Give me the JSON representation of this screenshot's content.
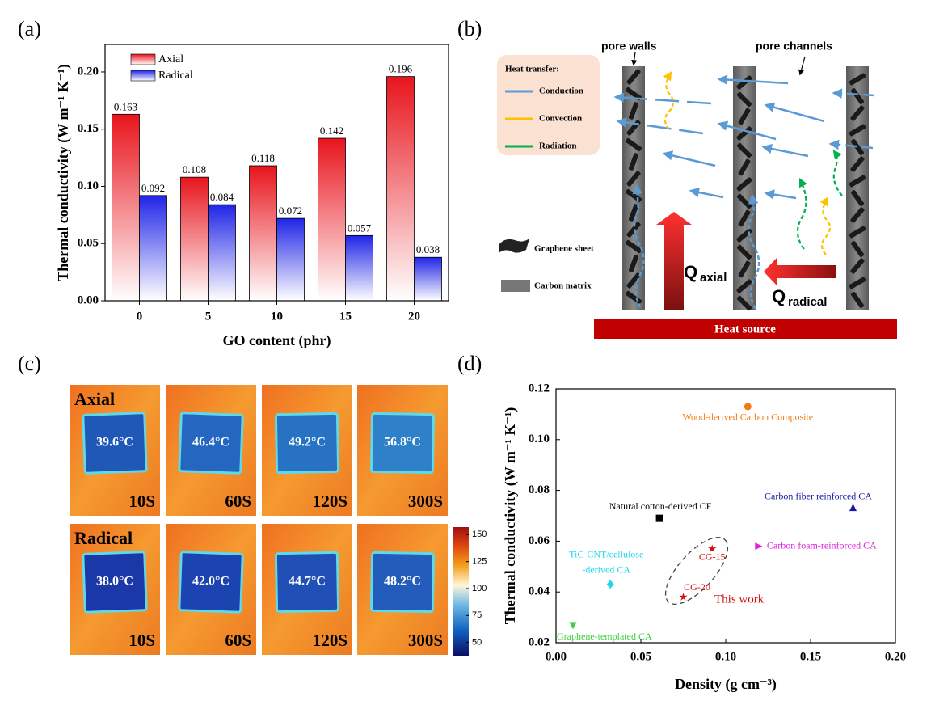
{
  "panel_labels": [
    "(a)",
    "(b)",
    "(c)",
    "(d)"
  ],
  "chart_data": [
    {
      "type": "bar",
      "categories": [
        0,
        5,
        10,
        15,
        20
      ],
      "series": [
        {
          "name": "Axial",
          "color": "#e8141c",
          "values": [
            0.163,
            0.108,
            0.118,
            0.142,
            0.196
          ]
        },
        {
          "name": "Radical",
          "color": "#2024e6",
          "values": [
            0.092,
            0.084,
            0.072,
            0.057,
            0.038
          ]
        }
      ],
      "xlabel": "GO content (phr)",
      "ylabel": "Thermal conductivity (W m⁻¹ K⁻¹)",
      "ylim": [
        0,
        0.224
      ],
      "yticks": [
        {
          "value": 0,
          "label": "0.00"
        },
        0.05,
        {
          "value": 0.1,
          "label": "0.10"
        },
        0.15,
        {
          "value": 0.2,
          "label": "0.20"
        }
      ],
      "legend": "upper left"
    },
    {
      "type": "scatter",
      "xlabel": "Density (g cm⁻³)",
      "ylabel": "Thermal conductivity (W m⁻¹ K⁻¹)",
      "xlim": [
        0,
        0.2
      ],
      "ylim": [
        0.02,
        0.12
      ],
      "xticks": [
        {
          "value": 0,
          "label": "0.00"
        },
        0.05,
        {
          "value": 0.1,
          "label": "0.10"
        },
        0.15,
        {
          "value": 0.2,
          "label": "0.20"
        }
      ],
      "yticks": [
        0.02,
        0.04,
        0.06,
        0.08,
        {
          "value": 0.1,
          "label": "0.10"
        },
        0.12
      ],
      "series": [
        {
          "name": "Wood-derived Carbon Composite",
          "color": "#f07c18",
          "marker": "circle",
          "x": [
            0.113
          ],
          "values": [
            0.113
          ]
        },
        {
          "name": "Carbon fiber reinforced CA",
          "color": "#1818a8",
          "marker": "triangle-up",
          "x": [
            0.175
          ],
          "values": [
            0.073
          ]
        },
        {
          "name": "Natural cotton-derived CF",
          "color": "#000000",
          "marker": "square",
          "x": [
            0.061
          ],
          "values": [
            0.069
          ]
        },
        {
          "name": "Carbon foam-reinforced CA",
          "color": "#e020e0",
          "marker": "triangle-right",
          "x": [
            0.119
          ],
          "values": [
            0.058
          ]
        },
        {
          "name": [
            "TiC-CNT/cellulose",
            "-derived CA"
          ],
          "color": "#20d8e8",
          "marker": "diamond",
          "x": [
            0.032
          ],
          "values": [
            0.043
          ]
        },
        {
          "name": "Graphene-templated CA",
          "color": "#40d040",
          "marker": "triangle-down",
          "x": [
            0.01
          ],
          "values": [
            0.027
          ]
        },
        {
          "name": "CG-15",
          "color": "#d01010",
          "marker": "star",
          "x": [
            0.092
          ],
          "values": [
            0.057
          ]
        },
        {
          "name": "CG-20",
          "color": "#d01010",
          "marker": "star",
          "x": [
            0.075
          ],
          "values": [
            0.038
          ]
        }
      ],
      "annotation": "This work"
    }
  ],
  "diagram": {
    "pore_walls": "pore walls",
    "pore_channels": "pore channels",
    "legend_title": "Heat transfer:",
    "legend": [
      "Conduction",
      "Convection",
      "Radiation"
    ],
    "materials": [
      "Graphene sheet",
      "Carbon matrix"
    ],
    "q_axial": {
      "symbol": "Q",
      "subscript": "axial"
    },
    "q_radical": {
      "symbol": "Q",
      "subscript": "radical"
    },
    "heat_source": "Heat source"
  },
  "thermal_images": {
    "rows": [
      {
        "label": "Axial",
        "temps": [
          "39.6°C",
          "46.4°C",
          "49.2°C",
          "56.8°C"
        ],
        "times": [
          "10S",
          "60S",
          "120S",
          "300S"
        ]
      },
      {
        "label": "Radical",
        "temps": [
          "38.0°C",
          "42.0°C",
          "44.7°C",
          "48.2°C"
        ],
        "times": [
          "10S",
          "60S",
          "120S",
          "300S"
        ]
      }
    ],
    "colorbar": {
      "clim": [
        37,
        157
      ],
      "ticks": [
        50,
        75,
        100,
        125,
        150
      ]
    }
  }
}
